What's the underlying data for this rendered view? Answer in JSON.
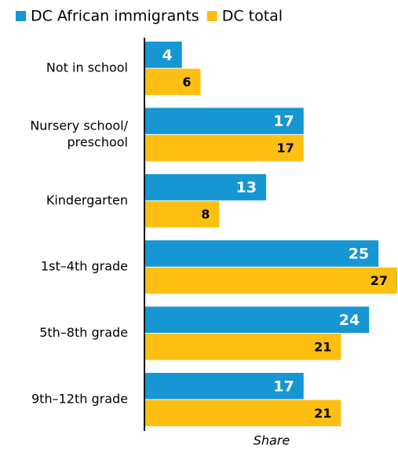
{
  "chart_data": {
    "type": "bar",
    "orientation": "horizontal",
    "categories": [
      "Not in school",
      "Nursery school/\npreschool",
      "Kindergarten",
      "1st–4th grade",
      "5th–8th grade",
      "9th–12th grade"
    ],
    "series": [
      {
        "name": "DC African immigrants",
        "color": "#1696d2",
        "values": [
          4,
          17,
          13,
          25,
          24,
          17
        ]
      },
      {
        "name": "DC total",
        "color": "#fdbf11",
        "values": [
          6,
          17,
          8,
          27,
          21,
          21
        ]
      }
    ],
    "xlabel": "Share",
    "xlim": [
      0,
      27
    ]
  }
}
